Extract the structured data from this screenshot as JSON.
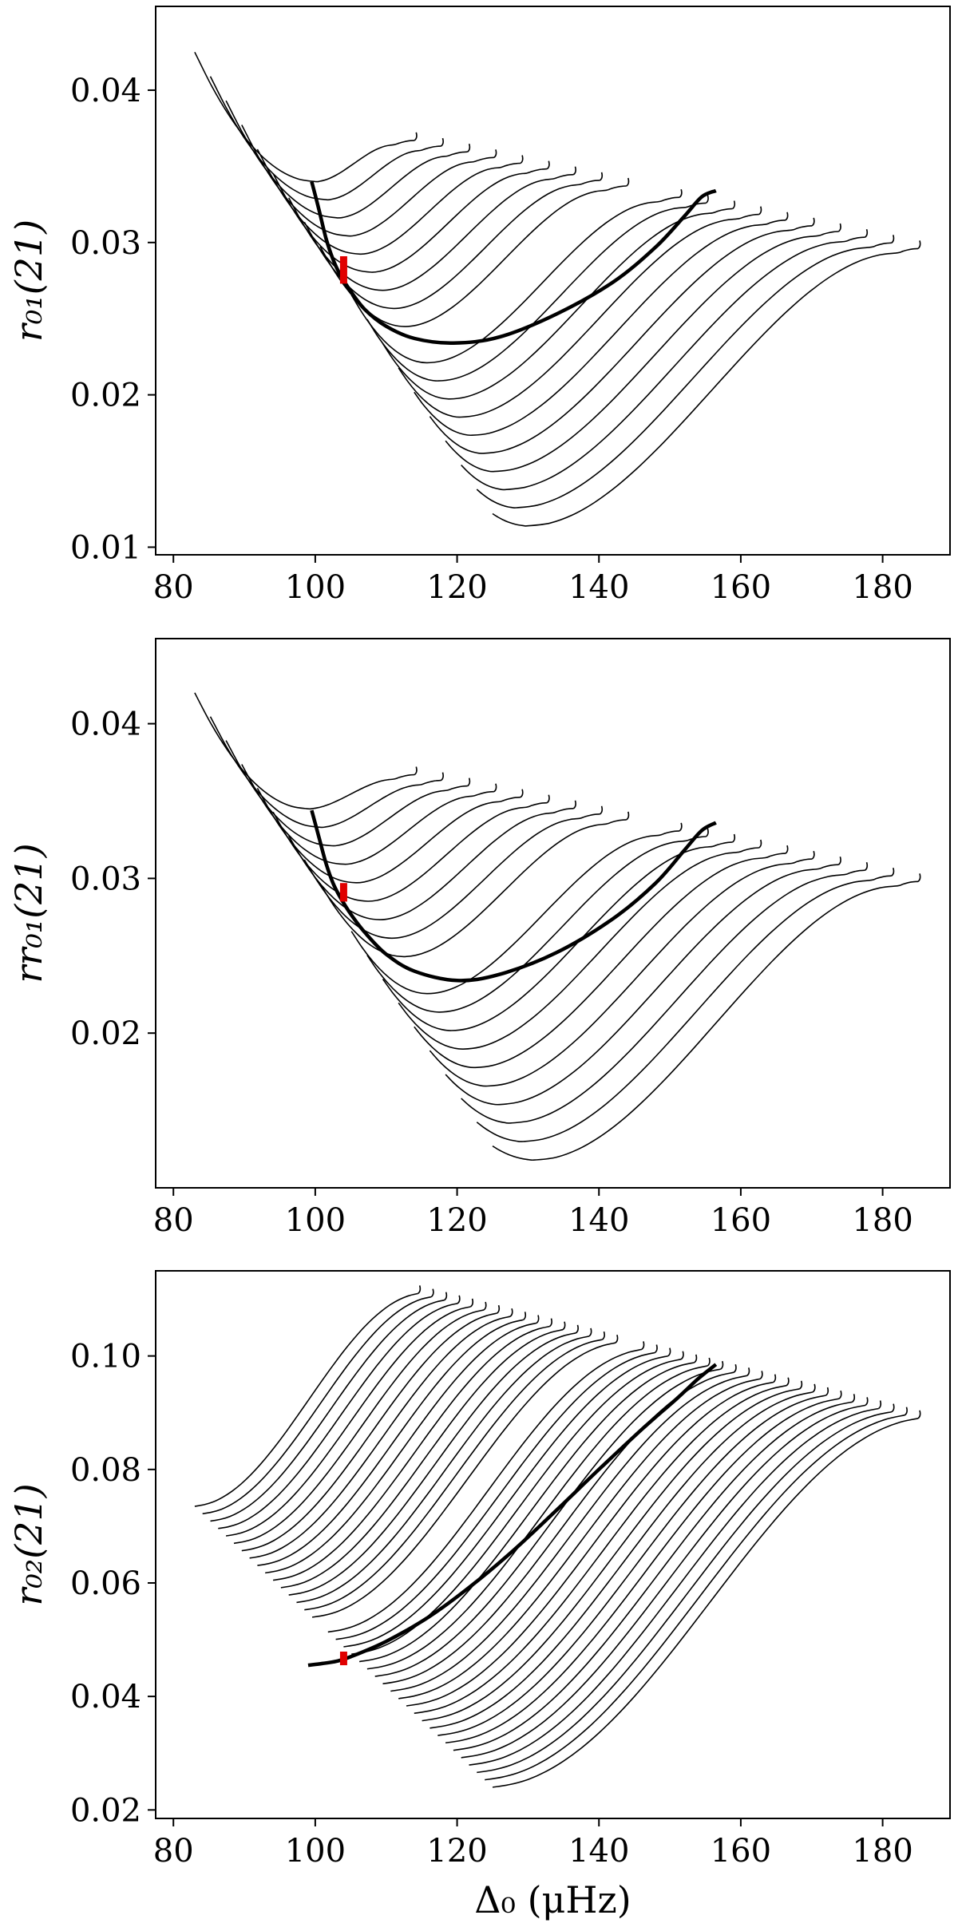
{
  "colors": {
    "curves": "#000000",
    "observation": "#e00000",
    "background": "#ffffff"
  },
  "chart_data": [
    {
      "type": "line",
      "xlabel": "Δ₀ (μHz)",
      "ylabel": "r₀₁(21)",
      "xlim": [
        77.5,
        189.5
      ],
      "ylim": [
        0.0095,
        0.0455
      ],
      "xticks": [
        "80",
        "100",
        "120",
        "140",
        "160",
        "180"
      ],
      "yticks": [
        "0.01",
        "0.02",
        "0.03",
        "0.04"
      ],
      "grid": false,
      "n_tracks": 20,
      "highlight_track": 9,
      "tracks": {
        "start_x": [
          83,
          125
        ],
        "start_y": [
          0.0425,
          0.0122
        ],
        "min_x": [
          100,
          130
        ],
        "min_y": [
          0.034,
          0.0114
        ],
        "end_x": [
          114,
          185
        ],
        "end_y": [
          0.0367,
          0.0296
        ]
      },
      "highlight_points": {
        "x": [
          99.5,
          100.5,
          101.5,
          102.5,
          103.5,
          105,
          107,
          110,
          114,
          119.5,
          126,
          134,
          142,
          148,
          152,
          154.5,
          156.5
        ],
        "y": [
          0.034,
          0.0322,
          0.0303,
          0.0289,
          0.0279,
          0.0268,
          0.0256,
          0.0245,
          0.0237,
          0.0234,
          0.0238,
          0.0253,
          0.0274,
          0.0297,
          0.0317,
          0.033,
          0.0334
        ]
      },
      "observation": {
        "x": 104,
        "y": 0.0282,
        "y_err": 0.0009
      }
    },
    {
      "type": "line",
      "xlabel": "",
      "ylabel": "rr₀₁(21)",
      "xlim": [
        77.5,
        189.5
      ],
      "ylim": [
        0.01,
        0.0455
      ],
      "xticks": [
        "80",
        "100",
        "120",
        "140",
        "160",
        "180"
      ],
      "yticks": [
        "0.02",
        "0.03",
        "0.04"
      ],
      "grid": false,
      "n_tracks": 20,
      "highlight_track": 9,
      "tracks": {
        "start_x": [
          83,
          125
        ],
        "start_y": [
          0.042,
          0.0127
        ],
        "min_x": [
          99,
          131
        ],
        "min_y": [
          0.0345,
          0.0118
        ],
        "end_x": [
          114,
          185
        ],
        "end_y": [
          0.0367,
          0.0298
        ]
      },
      "highlight_points": {
        "x": [
          99.5,
          100.5,
          101.5,
          102.5,
          103.5,
          105,
          107,
          110,
          114,
          120,
          126,
          134,
          142,
          148,
          152,
          154.5,
          156.5
        ],
        "y": [
          0.0344,
          0.0327,
          0.031,
          0.0297,
          0.0288,
          0.0277,
          0.0265,
          0.0251,
          0.024,
          0.0234,
          0.0238,
          0.0252,
          0.0274,
          0.0297,
          0.0318,
          0.0331,
          0.0336
        ]
      },
      "observation": {
        "x": 104,
        "y": 0.0291,
        "y_err": 0.0006
      }
    },
    {
      "type": "line",
      "xlabel": "Δ₀ (μHz)",
      "ylabel": "r₀₂(21)",
      "xlim": [
        77.5,
        189.5
      ],
      "ylim": [
        0.0185,
        0.115
      ],
      "xticks": [
        "80",
        "100",
        "120",
        "140",
        "160",
        "180"
      ],
      "yticks": [
        "0.02",
        "0.04",
        "0.06",
        "0.08",
        "0.10"
      ],
      "grid": false,
      "n_tracks": 39,
      "highlight_track": 16,
      "tracks": {
        "start_x": [
          83,
          125
        ],
        "start_y": [
          0.0735,
          0.024
        ],
        "end_x": [
          114.5,
          185
        ],
        "end_y": [
          0.111,
          0.089
        ]
      },
      "highlight_points": {
        "x": [
          99,
          101,
          103,
          105,
          110,
          116,
          122,
          128,
          134,
          140,
          146,
          151,
          154,
          156.5
        ],
        "y": [
          0.0455,
          0.0458,
          0.0462,
          0.047,
          0.0497,
          0.054,
          0.0595,
          0.0658,
          0.0728,
          0.08,
          0.087,
          0.0925,
          0.096,
          0.0985
        ]
      },
      "observation": {
        "x": 104,
        "y": 0.0467,
        "y_err": 0.0012
      }
    }
  ]
}
